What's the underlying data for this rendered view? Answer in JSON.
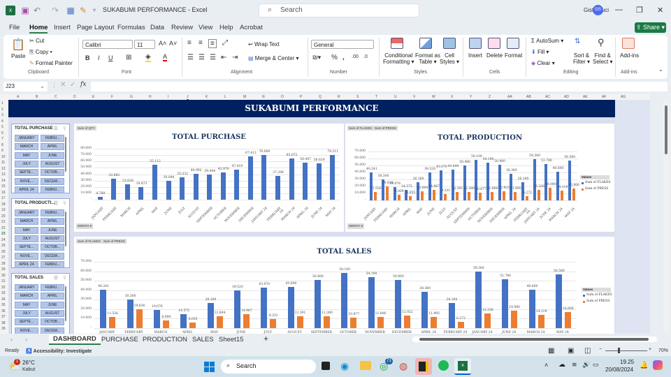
{
  "window": {
    "title": "SUKABUMI PERFORMANCE  -  Excel",
    "search_placeholder": "Search",
    "user_name": "Gisty Suci",
    "user_initials": "GS"
  },
  "menu": [
    "File",
    "Home",
    "Insert",
    "Page Layout",
    "Formulas",
    "Data",
    "Review",
    "View",
    "Help",
    "Acrobat"
  ],
  "share_label": "Share",
  "ribbon": {
    "clipboard": {
      "paste": "Paste",
      "cut": "Cut",
      "copy": "Copy",
      "format_painter": "Format Painter",
      "group": "Clipboard"
    },
    "font": {
      "name": "Calibri",
      "size": "11",
      "group": "Font"
    },
    "alignment": {
      "wrap": "Wrap Text",
      "merge": "Merge & Center",
      "group": "Alignment"
    },
    "number": {
      "format": "General",
      "group": "Number"
    },
    "styles": {
      "cond": "Conditional",
      "cond2": "Formatting",
      "fmt_table": "Format as",
      "fmt_table2": "Table",
      "cell_styles": "Cell",
      "cell_styles2": "Styles",
      "group": "Styles"
    },
    "cells": {
      "insert": "Insert",
      "delete": "Delete",
      "format": "Format",
      "group": "Cells"
    },
    "editing": {
      "autosum": "AutoSum",
      "fill": "Fill",
      "clear": "Clear",
      "sort": "Sort &",
      "sort2": "Filter",
      "find": "Find &",
      "find2": "Select",
      "group": "Editing"
    },
    "addins": {
      "label": "Add-ins",
      "group": "Add-ins"
    }
  },
  "formula_bar": {
    "name_box": "J23",
    "fx": "fx",
    "value": ""
  },
  "columns": [
    "A",
    "B",
    "C",
    "D",
    "E",
    "F",
    "G",
    "H",
    "I",
    "J",
    "K",
    "L",
    "M",
    "N",
    "O",
    "P",
    "Q",
    "R",
    "S",
    "T",
    "U",
    "V",
    "W",
    "X",
    "Y",
    "Z",
    "AA",
    "AB",
    "AC",
    "AD",
    "AE",
    "AF",
    "AG"
  ],
  "rows": [
    "1",
    "2",
    "3",
    "4",
    "5",
    "6",
    "7",
    "8",
    "9",
    "10",
    "11",
    "12",
    "13",
    "14",
    "15",
    "16",
    "17",
    "18",
    "19",
    "20",
    "21",
    "22",
    "23",
    "24",
    "25",
    "26",
    "27",
    "28",
    "29",
    "30",
    "31",
    "32",
    "33",
    "34",
    "35",
    "36",
    "37",
    "38",
    "39"
  ],
  "dashboard": {
    "banner": "SUKABUMI PERFORMANCE",
    "slicers": [
      {
        "title": "TOTAL PURCHASE",
        "items": [
          "JANUARY",
          "FEBRU...",
          "MARCH",
          "APRIL",
          "MAY",
          "JUNE",
          "JULY",
          "AUGUST",
          "SEPTE...",
          "OCTOB...",
          "NOVE...",
          "DECEM...",
          "APRIL 24",
          "FEBRU..."
        ]
      },
      {
        "title": "TOTAL PRODUCTI...",
        "items": [
          "JANUARY",
          "FEBRU...",
          "MARCH",
          "APRIL",
          "MAY",
          "JUNE",
          "JULY",
          "AUGUST",
          "SEPTE...",
          "OCTOB...",
          "NOVE...",
          "DECEM...",
          "APRIL 24",
          "FEBRU..."
        ]
      },
      {
        "title": "TOTAL SALES",
        "items": [
          "JANUARY",
          "FEBRU...",
          "MARCH",
          "APRIL",
          "MAY",
          "JUNE",
          "JULY",
          "AUGUST",
          "SEPTE...",
          "OCTOB...",
          "NOVE...",
          "DECEM..."
        ]
      }
    ],
    "field_buttons": {
      "qty": "Sum of QTY",
      "flakes": "Sum of FLAKES",
      "press": "Sum of PRESS",
      "month": "MONTH ▾"
    }
  },
  "chart_data": [
    {
      "type": "bar",
      "title": "TOTAL PURCHASE",
      "xlabel": "MONTH",
      "ylabel": "Sum of QTY",
      "ylim": [
        0,
        80000
      ],
      "yticks": [
        "-",
        "10.000",
        "20.000",
        "30.000",
        "40.000",
        "50.000",
        "60.000",
        "70.000",
        "80.000"
      ],
      "categories": [
        "JANUARY",
        "FEBRUARY",
        "MARCH",
        "APRIL",
        "MAY",
        "JUNE",
        "JULY",
        "AUGUST",
        "SEPTEMBER",
        "OCTOBER",
        "NOVEMBER",
        "DECEMBER",
        "JANUARY 24",
        "FEBRUARY 24",
        "MARCH 24",
        "APRIL 24",
        "JUNE 24",
        "MAY 24"
      ],
      "values": [
        4789,
        32682,
        23828,
        19873,
        55112,
        30044,
        35332,
        40992,
        39444,
        42970,
        47419,
        67412,
        70000,
        37296,
        65072,
        58447,
        56624,
        70211
      ],
      "labels": [
        "4.789",
        "32.682",
        "23.828",
        "19.873",
        "55.112",
        "30.044",
        "35.332",
        "40.992",
        "39.444",
        "42.970",
        "47.419",
        "67.412",
        "70.000",
        "37.296",
        "65.072",
        "58.447",
        "56.624",
        "70.211"
      ],
      "color": "#4472c4"
    },
    {
      "type": "bar",
      "title": "TOTAL PRODUCTION",
      "xlabel": "MONTH",
      "ylim": [
        0,
        70000
      ],
      "yticks": [
        "-",
        "10.000",
        "20.000",
        "30.000",
        "40.000",
        "50.000",
        "60.000",
        "70.000"
      ],
      "legend_title": "Values",
      "legend_position": "right",
      "categories": [
        "JANUARY",
        "FEBRUARY",
        "MARCH",
        "APRIL",
        "MAY",
        "JUNE",
        "JULY",
        "AUGUST",
        "SEPTEMBER",
        "OCTOBER",
        "NOVEMBER",
        "DECEMBER",
        "APRIL 24",
        "FEBRUARY 24",
        "JANUARY 24",
        "JUNE 24",
        "MARCH 24",
        "MAY 24"
      ],
      "series": [
        {
          "name": "Sum of FLAKES",
          "color": "#4472c4",
          "values": [
            40241,
            30300,
            19076,
            14575,
            26160,
            39520,
            43070,
            43640,
            50480,
            58100,
            54100,
            50960,
            38360,
            26160,
            59360,
            51780,
            40600,
            56580
          ],
          "labels": [
            "40.241",
            "30.300",
            "19.076",
            "14.575",
            "26.160",
            "39.520",
            "43.070",
            "43.640",
            "50.480",
            "58.100",
            "54.100",
            "50.960",
            "38.360",
            "26.160",
            "59.360",
            "51.780",
            "40.600",
            "56.580"
          ]
        },
        {
          "name": "Sum of PRESS",
          "color": "#ed7d31",
          "values": [
            11526,
            19636,
            8009,
            6055,
            12604,
            14967,
            9331,
            12391,
            12380,
            10877,
            11806,
            12922,
            11995,
            6272,
            15336,
            18080,
            14119,
            16806
          ],
          "labels": [
            "11.526",
            "19.636",
            "8.009",
            "6.055",
            "12.604",
            "14.967",
            "9.331",
            "12.391",
            "12.380",
            "10.877",
            "11.806",
            "12.922",
            "11.995",
            "6.272",
            "15.336",
            "18.080",
            "14.119",
            "16.806"
          ]
        }
      ]
    },
    {
      "type": "bar",
      "title": "TOTAL SALES",
      "ylim": [
        0,
        70000
      ],
      "yticks": [
        "-",
        "10.000",
        "20.000",
        "30.000",
        "40.000",
        "50.000",
        "60.000",
        "70.000"
      ],
      "legend_title": "Values",
      "legend_position": "right",
      "categories": [
        "JANUARY",
        "FEBRUARY",
        "MARCH",
        "APRIL",
        "MAY",
        "JUNE",
        "JULY",
        "AUGUST",
        "SEPTEMBER",
        "OCTOBER",
        "NOVEMBER",
        "DECEMBER",
        "APRIL 24",
        "FEBRUARY 24",
        "JANUARY 24",
        "JUNE 24",
        "MARCH 24",
        "MAY 24"
      ],
      "series": [
        {
          "name": "Sum of FLAKES",
          "color": "#4472c4",
          "values": [
            40241,
            30300,
            19076,
            14575,
            26160,
            39520,
            43070,
            43640,
            50480,
            58100,
            54100,
            50960,
            38360,
            26160,
            59360,
            51780,
            40600,
            56580
          ],
          "labels": [
            "40.241",
            "30.300",
            "19.076",
            "14.575",
            "26.160",
            "39.520",
            "43.070",
            "43.640",
            "50.480",
            "58.100",
            "54.100",
            "50.960",
            "38.360",
            "26.160",
            "59.360",
            "51.780",
            "40.600",
            "56.580"
          ]
        },
        {
          "name": "Sum of PRESS",
          "color": "#ed7d31",
          "values": [
            11526,
            19636,
            8009,
            6055,
            12604,
            14967,
            9331,
            12391,
            12380,
            10877,
            11806,
            12922,
            11995,
            6272,
            15336,
            18080,
            14119,
            16806
          ],
          "labels": [
            "11.526",
            "19.636",
            "8.009",
            "6.055",
            "12.604",
            "14.967",
            "9.331",
            "12.391",
            "12.380",
            "10.877",
            "11.806",
            "12.922",
            "11.995",
            "6.272",
            "15.336",
            "18.080",
            "14.119",
            "16.806"
          ]
        }
      ]
    }
  ],
  "sheet_tabs": [
    "DASHBOARD",
    "PURCHASE",
    "PRODUCTION",
    "SALES",
    "Sheet15"
  ],
  "add_sheet": "+",
  "status": {
    "ready": "Ready",
    "accessibility": "Accessibility: Investigate",
    "zoom": "70%"
  },
  "taskbar": {
    "weather_temp": "26°C",
    "weather_desc": "Kabut",
    "weather_badge": "1",
    "search": "Search",
    "whatsapp_badge": "71",
    "time": "19.25",
    "date": "20/08/2024"
  }
}
